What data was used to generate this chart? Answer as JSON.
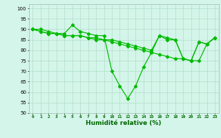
{
  "xlabel": "Humidité relative (%)",
  "x": [
    0,
    1,
    2,
    3,
    4,
    5,
    6,
    7,
    8,
    9,
    10,
    11,
    12,
    13,
    14,
    15,
    16,
    17,
    18,
    19,
    20,
    21,
    22,
    23
  ],
  "line1": [
    90,
    90,
    89,
    88,
    88,
    92,
    89,
    88,
    87,
    87,
    70,
    63,
    57,
    63,
    72,
    79,
    87,
    86,
    85,
    76,
    75,
    84,
    83,
    86
  ],
  "line2": [
    90,
    89,
    88,
    88,
    87,
    87,
    87,
    86,
    86,
    85,
    85,
    84,
    83,
    82,
    81,
    80,
    87,
    85,
    85,
    76,
    75,
    84,
    83,
    86
  ],
  "line3": [
    90,
    89,
    88,
    88,
    87,
    87,
    87,
    86,
    85,
    85,
    84,
    83,
    82,
    81,
    80,
    79,
    78,
    77,
    76,
    76,
    75,
    75,
    83,
    86
  ],
  "line_color": "#00bb00",
  "bg_color": "#d4f5e9",
  "grid_color": "#b0ddc8",
  "ylim": [
    50,
    102
  ],
  "yticks": [
    50,
    55,
    60,
    65,
    70,
    75,
    80,
    85,
    90,
    95,
    100
  ],
  "xlim": [
    -0.5,
    23.5
  ]
}
